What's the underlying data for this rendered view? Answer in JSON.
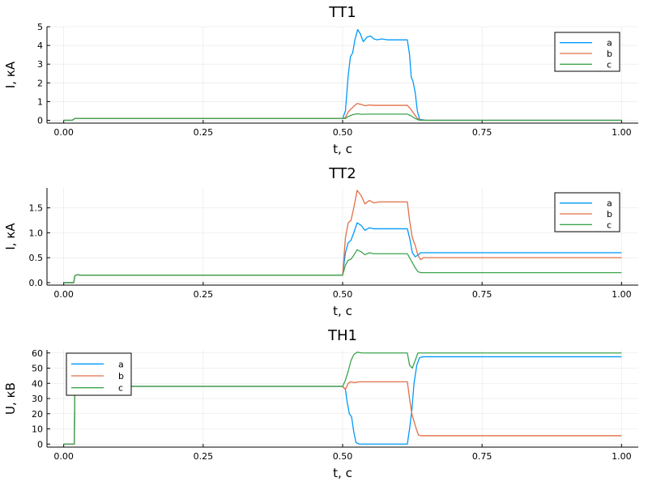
{
  "chart_data": [
    {
      "type": "line",
      "title": "ТТ1",
      "xlabel": "t, c",
      "ylabel": "I, кА",
      "xlim": [
        -0.03,
        1.03
      ],
      "ylim": [
        -0.15,
        5.0
      ],
      "xticks": [
        0.0,
        0.25,
        0.5,
        0.75,
        1.0
      ],
      "xtick_labels": [
        "0.00",
        "0.25",
        "0.50",
        "0.75",
        "1.00"
      ],
      "yticks": [
        0,
        1,
        2,
        3,
        4,
        5
      ],
      "ytick_labels": [
        "0",
        "1",
        "2",
        "3",
        "4",
        "5"
      ],
      "grid": true,
      "legend_position": "top-right",
      "series": [
        {
          "name": "a",
          "color": "#009af9",
          "points": [
            [
              0,
              0
            ],
            [
              0.015,
              0
            ],
            [
              0.02,
              0.1
            ],
            [
              0.5,
              0.1
            ],
            [
              0.505,
              0.5
            ],
            [
              0.51,
              2.4
            ],
            [
              0.514,
              3.4
            ],
            [
              0.518,
              3.6
            ],
            [
              0.522,
              4.3
            ],
            [
              0.527,
              4.85
            ],
            [
              0.532,
              4.6
            ],
            [
              0.537,
              4.2
            ],
            [
              0.544,
              4.45
            ],
            [
              0.55,
              4.5
            ],
            [
              0.556,
              4.35
            ],
            [
              0.562,
              4.3
            ],
            [
              0.57,
              4.35
            ],
            [
              0.58,
              4.3
            ],
            [
              0.6,
              4.3
            ],
            [
              0.616,
              4.3
            ],
            [
              0.62,
              3.5
            ],
            [
              0.623,
              2.3
            ],
            [
              0.626,
              2.1
            ],
            [
              0.63,
              1.5
            ],
            [
              0.634,
              0.5
            ],
            [
              0.638,
              0.05
            ],
            [
              0.65,
              0
            ],
            [
              1.0,
              0
            ]
          ]
        },
        {
          "name": "b",
          "color": "#e26f46",
          "points": [
            [
              0,
              0
            ],
            [
              0.015,
              0
            ],
            [
              0.02,
              0.1
            ],
            [
              0.5,
              0.1
            ],
            [
              0.505,
              0.15
            ],
            [
              0.51,
              0.45
            ],
            [
              0.515,
              0.6
            ],
            [
              0.52,
              0.75
            ],
            [
              0.526,
              0.9
            ],
            [
              0.533,
              0.85
            ],
            [
              0.54,
              0.78
            ],
            [
              0.548,
              0.82
            ],
            [
              0.556,
              0.8
            ],
            [
              0.57,
              0.8
            ],
            [
              0.6,
              0.8
            ],
            [
              0.616,
              0.8
            ],
            [
              0.622,
              0.6
            ],
            [
              0.628,
              0.35
            ],
            [
              0.634,
              0.1
            ],
            [
              0.64,
              0
            ],
            [
              1.0,
              0
            ]
          ]
        },
        {
          "name": "c",
          "color": "#3da44d",
          "points": [
            [
              0,
              0
            ],
            [
              0.015,
              0
            ],
            [
              0.02,
              0.1
            ],
            [
              0.5,
              0.1
            ],
            [
              0.505,
              0.1
            ],
            [
              0.51,
              0.2
            ],
            [
              0.518,
              0.3
            ],
            [
              0.526,
              0.35
            ],
            [
              0.534,
              0.32
            ],
            [
              0.545,
              0.33
            ],
            [
              0.57,
              0.33
            ],
            [
              0.6,
              0.33
            ],
            [
              0.616,
              0.33
            ],
            [
              0.622,
              0.25
            ],
            [
              0.63,
              0.1
            ],
            [
              0.638,
              0
            ],
            [
              1.0,
              0
            ]
          ]
        }
      ]
    },
    {
      "type": "line",
      "title": "ТТ2",
      "xlabel": "t, c",
      "ylabel": "I, кА",
      "xlim": [
        -0.03,
        1.03
      ],
      "ylim": [
        -0.05,
        1.9
      ],
      "xticks": [
        0.0,
        0.25,
        0.5,
        0.75,
        1.0
      ],
      "xtick_labels": [
        "0.00",
        "0.25",
        "0.50",
        "0.75",
        "1.00"
      ],
      "yticks": [
        0.0,
        0.5,
        1.0,
        1.5
      ],
      "ytick_labels": [
        "0.0",
        "0.5",
        "1.0",
        "1.5"
      ],
      "grid": true,
      "legend_position": "top-right",
      "series": [
        {
          "name": "a",
          "color": "#009af9",
          "points": [
            [
              0,
              0
            ],
            [
              0.018,
              0
            ],
            [
              0.02,
              0.14
            ],
            [
              0.025,
              0.16
            ],
            [
              0.03,
              0.15
            ],
            [
              0.5,
              0.15
            ],
            [
              0.505,
              0.6
            ],
            [
              0.51,
              0.8
            ],
            [
              0.515,
              0.85
            ],
            [
              0.52,
              1.0
            ],
            [
              0.526,
              1.2
            ],
            [
              0.533,
              1.15
            ],
            [
              0.54,
              1.05
            ],
            [
              0.548,
              1.1
            ],
            [
              0.556,
              1.08
            ],
            [
              0.565,
              1.08
            ],
            [
              0.6,
              1.08
            ],
            [
              0.616,
              1.08
            ],
            [
              0.62,
              0.9
            ],
            [
              0.625,
              0.6
            ],
            [
              0.63,
              0.52
            ],
            [
              0.635,
              0.55
            ],
            [
              0.64,
              0.6
            ],
            [
              0.65,
              0.6
            ],
            [
              1.0,
              0.6
            ]
          ]
        },
        {
          "name": "b",
          "color": "#e26f46",
          "points": [
            [
              0,
              0
            ],
            [
              0.018,
              0
            ],
            [
              0.02,
              0.14
            ],
            [
              0.025,
              0.16
            ],
            [
              0.03,
              0.15
            ],
            [
              0.5,
              0.15
            ],
            [
              0.505,
              0.9
            ],
            [
              0.51,
              1.2
            ],
            [
              0.515,
              1.25
            ],
            [
              0.52,
              1.5
            ],
            [
              0.526,
              1.85
            ],
            [
              0.533,
              1.75
            ],
            [
              0.54,
              1.58
            ],
            [
              0.548,
              1.65
            ],
            [
              0.556,
              1.6
            ],
            [
              0.565,
              1.62
            ],
            [
              0.6,
              1.62
            ],
            [
              0.616,
              1.62
            ],
            [
              0.62,
              1.25
            ],
            [
              0.625,
              0.9
            ],
            [
              0.63,
              0.75
            ],
            [
              0.635,
              0.55
            ],
            [
              0.64,
              0.46
            ],
            [
              0.645,
              0.5
            ],
            [
              0.65,
              0.5
            ],
            [
              1.0,
              0.5
            ]
          ]
        },
        {
          "name": "c",
          "color": "#3da44d",
          "points": [
            [
              0,
              0
            ],
            [
              0.018,
              0
            ],
            [
              0.02,
              0.14
            ],
            [
              0.025,
              0.16
            ],
            [
              0.03,
              0.15
            ],
            [
              0.5,
              0.15
            ],
            [
              0.505,
              0.35
            ],
            [
              0.51,
              0.45
            ],
            [
              0.515,
              0.47
            ],
            [
              0.52,
              0.55
            ],
            [
              0.526,
              0.66
            ],
            [
              0.533,
              0.62
            ],
            [
              0.54,
              0.56
            ],
            [
              0.548,
              0.6
            ],
            [
              0.556,
              0.58
            ],
            [
              0.565,
              0.58
            ],
            [
              0.6,
              0.58
            ],
            [
              0.616,
              0.58
            ],
            [
              0.62,
              0.5
            ],
            [
              0.625,
              0.4
            ],
            [
              0.63,
              0.3
            ],
            [
              0.635,
              0.22
            ],
            [
              0.64,
              0.2
            ],
            [
              0.65,
              0.2
            ],
            [
              1.0,
              0.2
            ]
          ]
        }
      ]
    },
    {
      "type": "line",
      "title": "ТН1",
      "xlabel": "t, c",
      "ylabel": "U, кВ",
      "xlim": [
        -0.03,
        1.03
      ],
      "ylim": [
        -2,
        62
      ],
      "xticks": [
        0.0,
        0.25,
        0.5,
        0.75,
        1.0
      ],
      "xtick_labels": [
        "0.00",
        "0.25",
        "0.50",
        "0.75",
        "1.00"
      ],
      "yticks": [
        0,
        10,
        20,
        30,
        40,
        50,
        60
      ],
      "ytick_labels": [
        "0",
        "10",
        "20",
        "30",
        "40",
        "50",
        "60"
      ],
      "grid": true,
      "legend_position": "top-left",
      "series": [
        {
          "name": "a",
          "color": "#009af9",
          "points": [
            [
              0,
              0
            ],
            [
              0.019,
              0
            ],
            [
              0.02,
              38
            ],
            [
              0.5,
              38
            ],
            [
              0.505,
              36
            ],
            [
              0.508,
              28
            ],
            [
              0.512,
              20
            ],
            [
              0.516,
              18
            ],
            [
              0.52,
              8
            ],
            [
              0.524,
              1
            ],
            [
              0.53,
              0
            ],
            [
              0.6,
              0
            ],
            [
              0.616,
              0
            ],
            [
              0.62,
              10
            ],
            [
              0.624,
              22
            ],
            [
              0.628,
              40
            ],
            [
              0.633,
              52
            ],
            [
              0.638,
              57
            ],
            [
              0.645,
              57.5
            ],
            [
              1.0,
              57.5
            ]
          ]
        },
        {
          "name": "b",
          "color": "#e26f46",
          "points": [
            [
              0,
              0
            ],
            [
              0.019,
              0
            ],
            [
              0.02,
              38
            ],
            [
              0.5,
              38
            ],
            [
              0.505,
              36
            ],
            [
              0.51,
              40
            ],
            [
              0.515,
              41
            ],
            [
              0.52,
              40.5
            ],
            [
              0.53,
              41
            ],
            [
              0.6,
              41
            ],
            [
              0.616,
              41
            ],
            [
              0.62,
              30
            ],
            [
              0.624,
              20
            ],
            [
              0.628,
              15
            ],
            [
              0.632,
              10
            ],
            [
              0.636,
              6
            ],
            [
              0.64,
              5.5
            ],
            [
              0.645,
              5.5
            ],
            [
              1.0,
              5.5
            ]
          ]
        },
        {
          "name": "c",
          "color": "#3da44d",
          "points": [
            [
              0,
              0
            ],
            [
              0.019,
              0
            ],
            [
              0.02,
              38
            ],
            [
              0.5,
              38
            ],
            [
              0.505,
              42
            ],
            [
              0.51,
              48
            ],
            [
              0.515,
              55
            ],
            [
              0.52,
              59
            ],
            [
              0.526,
              60.5
            ],
            [
              0.535,
              60
            ],
            [
              0.6,
              60
            ],
            [
              0.616,
              60
            ],
            [
              0.62,
              52
            ],
            [
              0.625,
              50
            ],
            [
              0.63,
              55
            ],
            [
              0.635,
              60
            ],
            [
              0.64,
              60
            ],
            [
              1.0,
              60
            ]
          ]
        }
      ]
    }
  ]
}
